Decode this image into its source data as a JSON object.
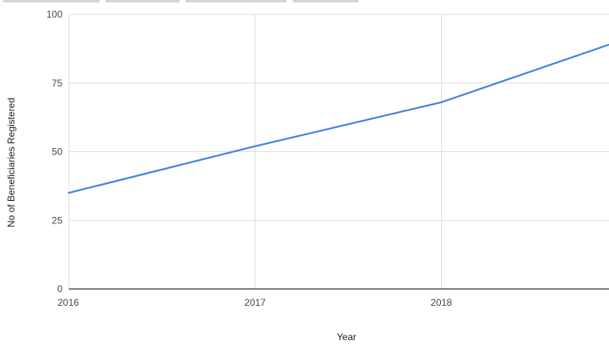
{
  "chart_data": {
    "type": "line",
    "title": "",
    "xlabel": "Year",
    "ylabel": "No of Beneficiaries Registered",
    "x": [
      2016,
      2017,
      2018,
      2018.9
    ],
    "series": [
      {
        "values": [
          35,
          52,
          68,
          89
        ],
        "color": "#4a7fe0"
      }
    ],
    "xlim": [
      2016,
      2018.9
    ],
    "ylim": [
      0,
      100
    ],
    "x_ticks": [
      "2016",
      "2017",
      "2018"
    ],
    "y_ticks": [
      "0",
      "25",
      "50",
      "75",
      "100"
    ],
    "grid": true,
    "grid_color": "#dedede",
    "baseline_color": "#333333",
    "legend": "none"
  }
}
